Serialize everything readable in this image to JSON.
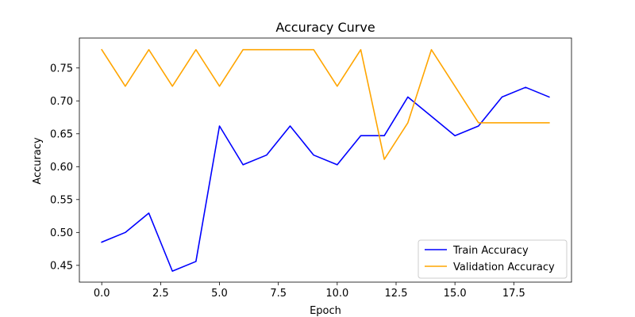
{
  "chart_data": {
    "type": "line",
    "title": "Accuracy Curve",
    "xlabel": "Epoch",
    "ylabel": "Accuracy",
    "xlim": [
      -0.95,
      19.95
    ],
    "ylim": [
      0.4245,
      0.7955
    ],
    "xticks": [
      0,
      2.5,
      5,
      7.5,
      10,
      12.5,
      15,
      17.5
    ],
    "xtick_labels": [
      "0.0",
      "2.5",
      "5.0",
      "7.5",
      "10.0",
      "12.5",
      "15.0",
      "17.5"
    ],
    "yticks": [
      0.45,
      0.5,
      0.55,
      0.6,
      0.65,
      0.7,
      0.75
    ],
    "ytick_labels": [
      "0.45",
      "0.50",
      "0.55",
      "0.60",
      "0.65",
      "0.70",
      "0.75"
    ],
    "grid": false,
    "legend_position": "lower-right",
    "x": [
      0,
      1,
      2,
      3,
      4,
      5,
      6,
      7,
      8,
      9,
      10,
      11,
      12,
      13,
      14,
      15,
      16,
      17,
      18,
      19
    ],
    "series": [
      {
        "name": "Train Accuracy",
        "color": "#0000ff",
        "values": [
          0.4853,
          0.5,
          0.5294,
          0.4412,
          0.4559,
          0.6618,
          0.6029,
          0.6176,
          0.6618,
          0.6176,
          0.6029,
          0.6471,
          0.6471,
          0.7059,
          0.6765,
          0.6471,
          0.6618,
          0.7059,
          0.7206,
          0.7059
        ]
      },
      {
        "name": "Validation Accuracy",
        "color": "#ffa500",
        "values": [
          0.7778,
          0.7222,
          0.7778,
          0.7222,
          0.7778,
          0.7222,
          0.7778,
          0.7778,
          0.7778,
          0.7778,
          0.7222,
          0.7778,
          0.6111,
          0.6667,
          0.7778,
          0.7222,
          0.6667,
          0.6667,
          0.6667,
          0.6667
        ]
      }
    ]
  }
}
